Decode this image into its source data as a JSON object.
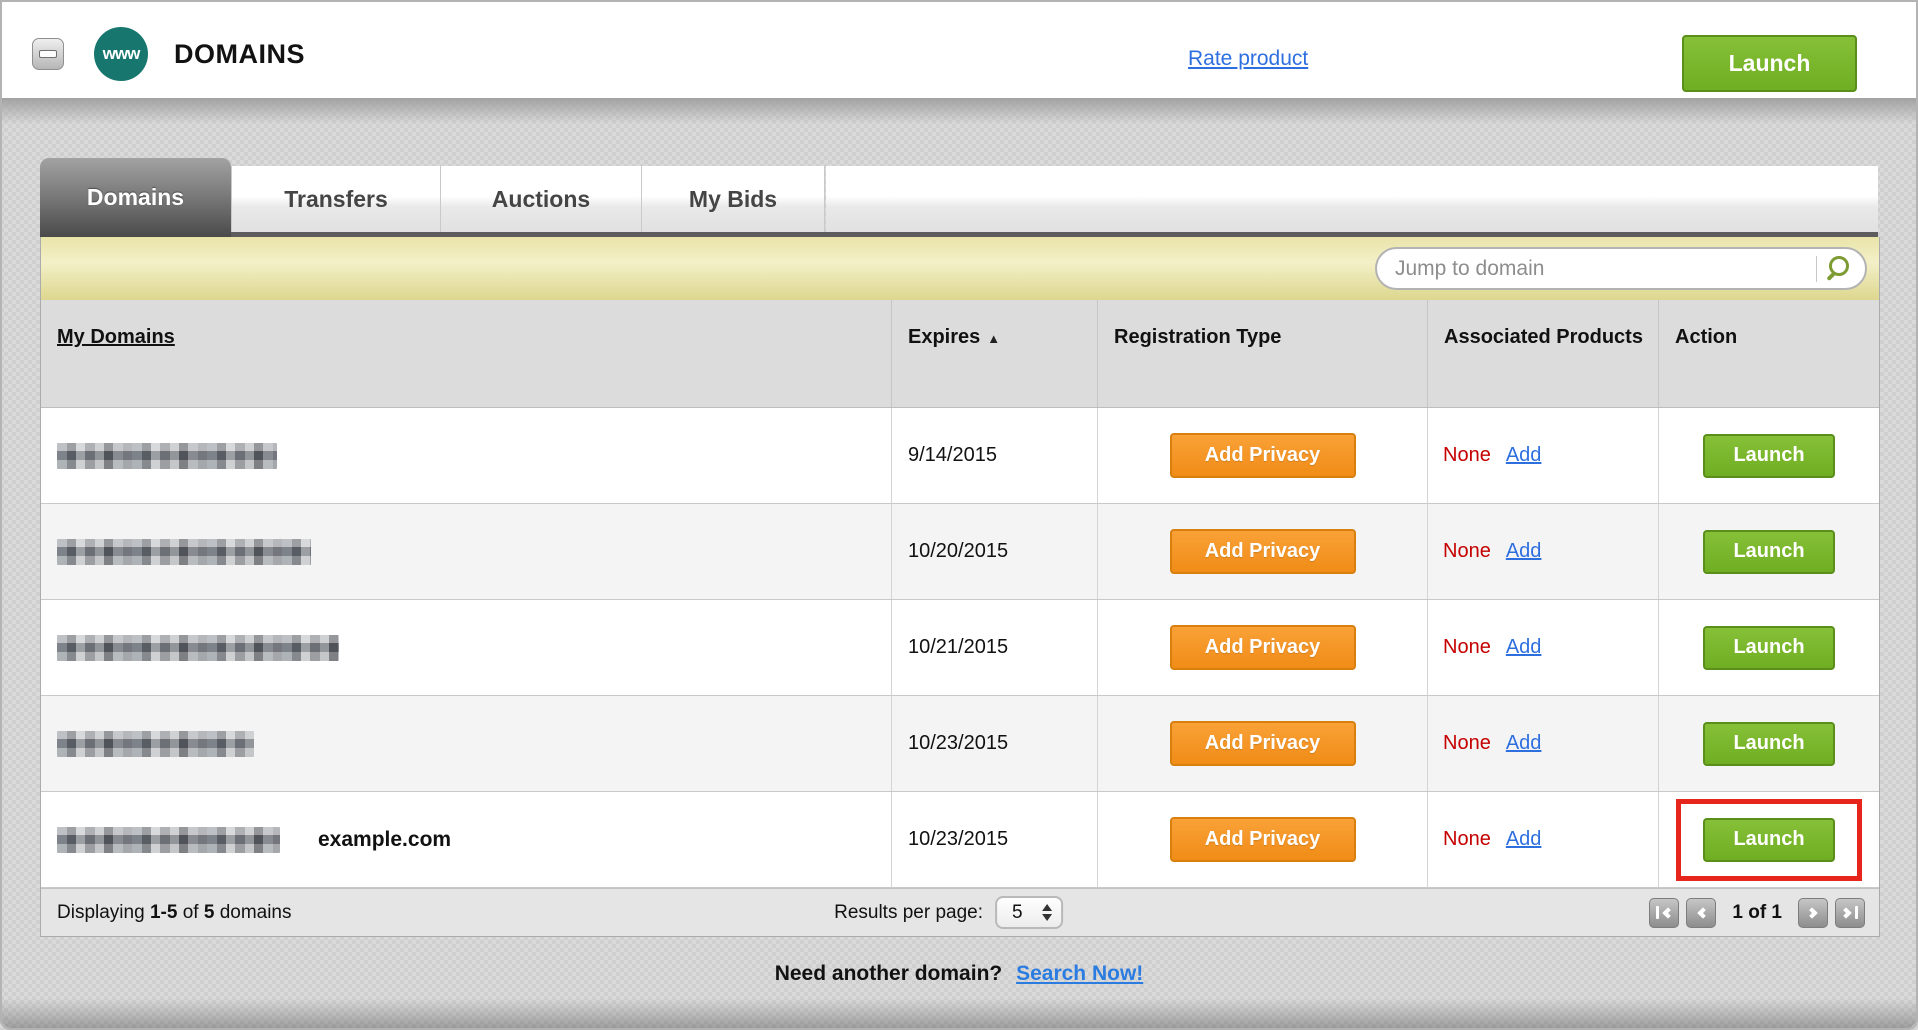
{
  "header": {
    "title": "DOMAINS",
    "logo_text": "www",
    "rate_link": "Rate product",
    "launch_button": "Launch"
  },
  "tabs": [
    {
      "label": "Domains",
      "active": true
    },
    {
      "label": "Transfers",
      "active": false
    },
    {
      "label": "Auctions",
      "active": false
    },
    {
      "label": "My Bids",
      "active": false
    }
  ],
  "search": {
    "placeholder": "Jump to domain"
  },
  "table": {
    "columns": {
      "my_domains": "My Domains",
      "expires": "Expires",
      "registration_type": "Registration Type",
      "associated_products": "Associated Products",
      "action": "Action"
    },
    "sort_indicator": "▲",
    "rows": [
      {
        "domain_redacted": true,
        "expires": "9/14/2015",
        "privacy_label": "Add Privacy",
        "associated": "None",
        "add_label": "Add",
        "launch_label": "Launch"
      },
      {
        "domain_redacted": true,
        "expires": "10/20/2015",
        "privacy_label": "Add Privacy",
        "associated": "None",
        "add_label": "Add",
        "launch_label": "Launch"
      },
      {
        "domain_redacted": true,
        "expires": "10/21/2015",
        "privacy_label": "Add Privacy",
        "associated": "None",
        "add_label": "Add",
        "launch_label": "Launch"
      },
      {
        "domain_redacted": true,
        "expires": "10/23/2015",
        "privacy_label": "Add Privacy",
        "associated": "None",
        "add_label": "Add",
        "launch_label": "Launch"
      },
      {
        "domain_redacted": true,
        "expires": "10/23/2015",
        "privacy_label": "Add Privacy",
        "associated": "None",
        "add_label": "Add",
        "launch_label": "Launch",
        "annotation": "example.com",
        "highlighted": true
      }
    ]
  },
  "footer": {
    "displaying_prefix": "Displaying",
    "range": "1-5",
    "of_word": "of",
    "total": "5",
    "suffix": "domains",
    "results_per_page_label": "Results per page:",
    "results_per_page_value": "5",
    "page_status": "1 of 1"
  },
  "bottom": {
    "prompt": "Need another domain?",
    "link": "Search Now!"
  },
  "colors": {
    "launch_green": "#76b42a",
    "privacy_orange": "#f29422",
    "highlight_red": "#e6251c",
    "none_red": "#c40000",
    "link_blue": "#2e6fe0",
    "search_strip_yellow": "#ece7ae",
    "logo_teal": "#17776e"
  }
}
